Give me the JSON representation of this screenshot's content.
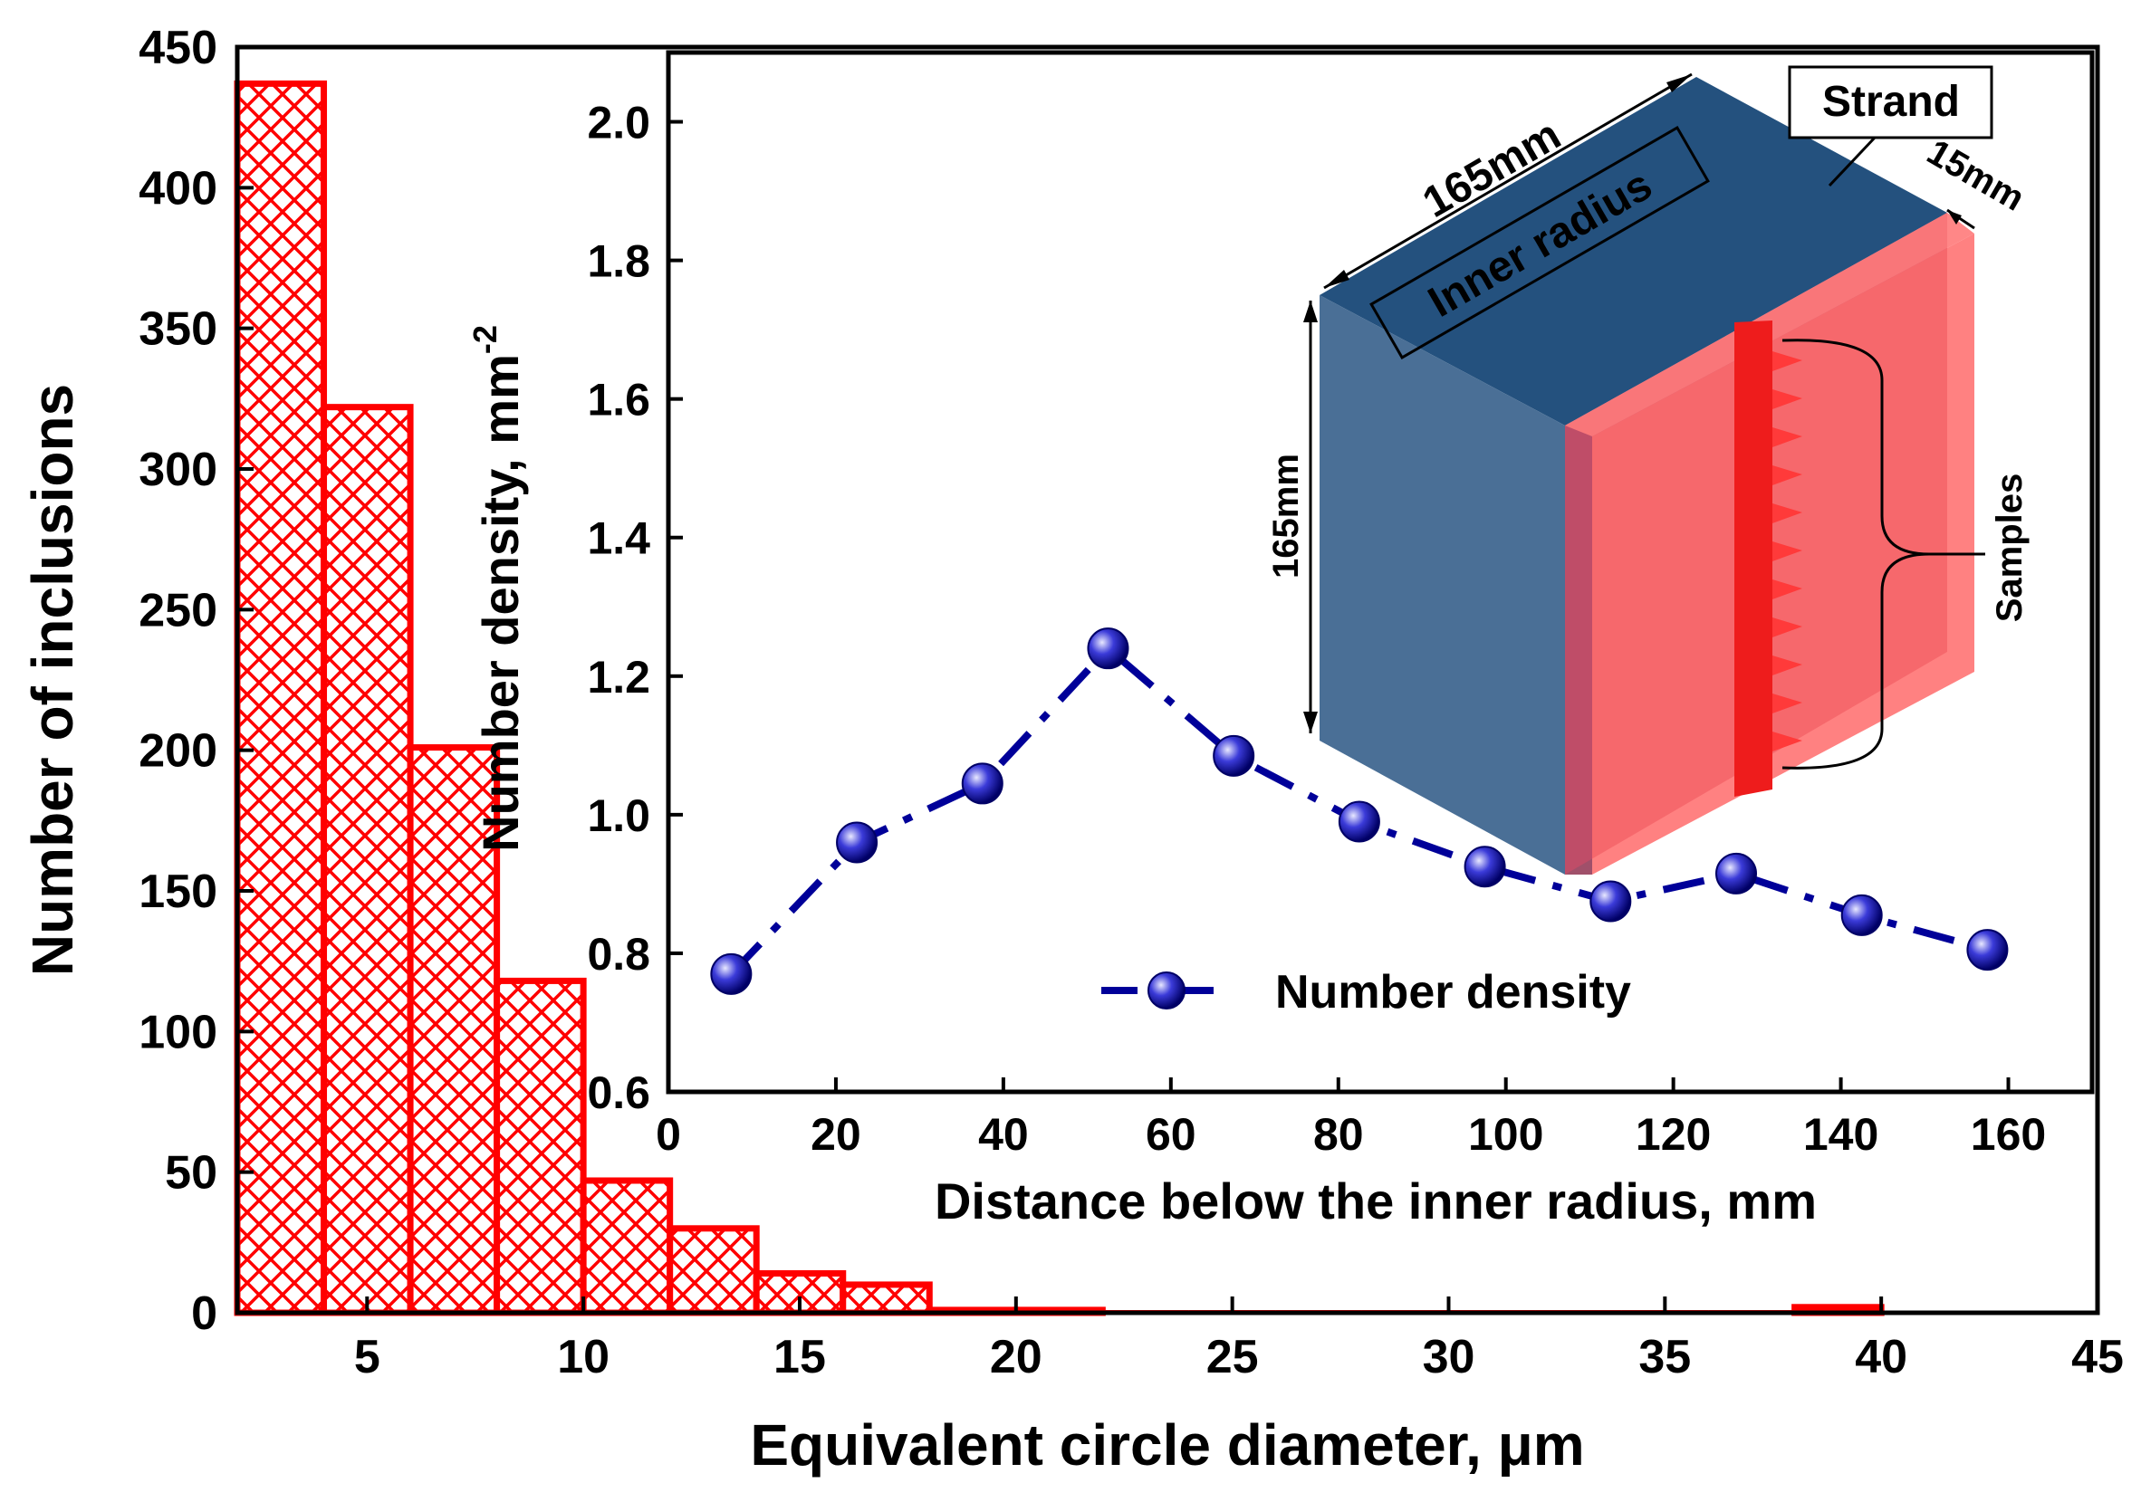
{
  "chart_data": [
    {
      "type": "bar",
      "name": "histogram",
      "xlabel": "Equivalent circle diameter, μm",
      "ylabel": "Number of inclusions",
      "xlim": [
        2,
        45
      ],
      "ylim": [
        0,
        450
      ],
      "xticks": [
        5,
        10,
        15,
        20,
        25,
        30,
        35,
        40,
        45
      ],
      "yticks": [
        0,
        50,
        100,
        150,
        200,
        250,
        300,
        350,
        400,
        450
      ],
      "bins": [
        {
          "x0": 2,
          "x1": 4,
          "value": 437
        },
        {
          "x0": 4,
          "x1": 6,
          "value": 322
        },
        {
          "x0": 6,
          "x1": 8,
          "value": 201
        },
        {
          "x0": 8,
          "x1": 10,
          "value": 118
        },
        {
          "x0": 10,
          "x1": 12,
          "value": 47
        },
        {
          "x0": 12,
          "x1": 14,
          "value": 30
        },
        {
          "x0": 14,
          "x1": 16,
          "value": 14
        },
        {
          "x0": 16,
          "x1": 18,
          "value": 10
        },
        {
          "x0": 18,
          "x1": 20,
          "value": 1
        },
        {
          "x0": 20,
          "x1": 22,
          "value": 1
        },
        {
          "x0": 22,
          "x1": 24,
          "value": 0
        },
        {
          "x0": 24,
          "x1": 26,
          "value": 0
        },
        {
          "x0": 26,
          "x1": 28,
          "value": 0
        },
        {
          "x0": 28,
          "x1": 30,
          "value": 0
        },
        {
          "x0": 30,
          "x1": 32,
          "value": 0
        },
        {
          "x0": 32,
          "x1": 34,
          "value": 0
        },
        {
          "x0": 34,
          "x1": 36,
          "value": 0
        },
        {
          "x0": 36,
          "x1": 38,
          "value": 0
        },
        {
          "x0": 38,
          "x1": 40,
          "value": 2
        }
      ],
      "color": "#ff0000"
    },
    {
      "type": "line",
      "name": "inset",
      "xlabel": "Distance below the inner radius, mm",
      "ylabel": "Number density, mm",
      "ylabel_exponent": "-2",
      "xlim": [
        0,
        170
      ],
      "ylim": [
        0.6,
        2.1
      ],
      "xticks": [
        0,
        20,
        40,
        60,
        80,
        100,
        120,
        140,
        160
      ],
      "yticks": [
        "0.6",
        "0.8",
        "1.0",
        "1.2",
        "1.4",
        "1.6",
        "1.8",
        "2.0"
      ],
      "series": [
        {
          "name": "Number density",
          "x": [
            7.5,
            22.5,
            37.5,
            52.5,
            67.5,
            82.5,
            97.5,
            112.5,
            127.5,
            142.5,
            157.5
          ],
          "y": [
            0.77,
            0.96,
            1.045,
            1.24,
            1.085,
            0.99,
            0.925,
            0.875,
            0.915,
            0.855,
            0.805
          ]
        }
      ],
      "legend": "Number density",
      "color": "#000099"
    }
  ],
  "diagram": {
    "strand_label": "Strand",
    "inner_radius_label": "Inner radius",
    "width_label": "165mm",
    "height_label": "165mm",
    "depth_label": "15mm",
    "samples_label": "Samples"
  },
  "colors": {
    "bar": "#ff0000",
    "line": "#000099",
    "cube_front": "#4a6f96",
    "cube_top": "#24517e",
    "slab": "#ff6b6b"
  }
}
